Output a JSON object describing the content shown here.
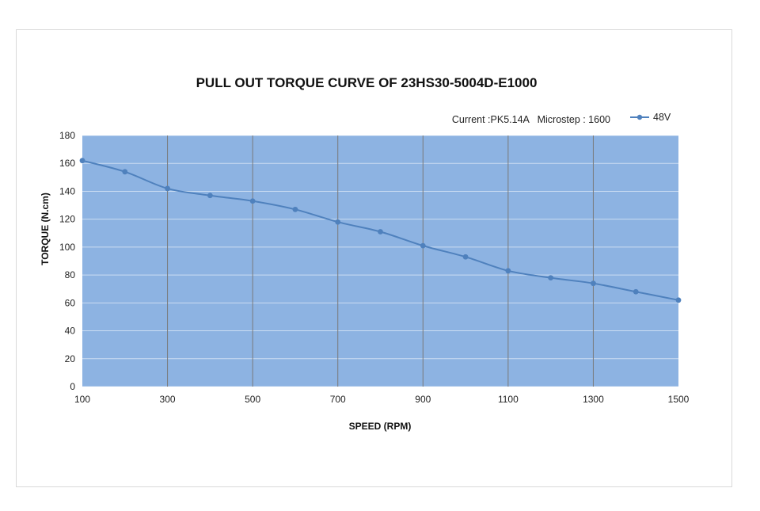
{
  "chart_data": {
    "type": "line",
    "title": "PULL OUT TORQUE CURVE OF 23HS30-5004D-E1000",
    "subtitle": "Current :PK5.14A   Microstep : 1600",
    "xlabel": "SPEED (RPM)",
    "ylabel": "TORQUE (N.cm)",
    "xlim": [
      100,
      1500
    ],
    "ylim": [
      0,
      180
    ],
    "x_ticks": [
      "100",
      "300",
      "500",
      "700",
      "900",
      "1100",
      "1300",
      "1500"
    ],
    "y_ticks": [
      "0",
      "20",
      "40",
      "60",
      "80",
      "100",
      "120",
      "140",
      "160",
      "180"
    ],
    "grid": true,
    "legend_position": "top-right",
    "plot_background": "#8db3e2",
    "series": [
      {
        "name": "48V",
        "color": "#4f81bd",
        "x": [
          100,
          200,
          300,
          400,
          500,
          600,
          700,
          800,
          900,
          1000,
          1100,
          1200,
          1300,
          1400,
          1500
        ],
        "y": [
          162,
          154,
          142,
          137,
          133,
          127,
          118,
          111,
          101,
          93,
          83,
          78,
          74,
          68,
          62
        ]
      }
    ]
  }
}
